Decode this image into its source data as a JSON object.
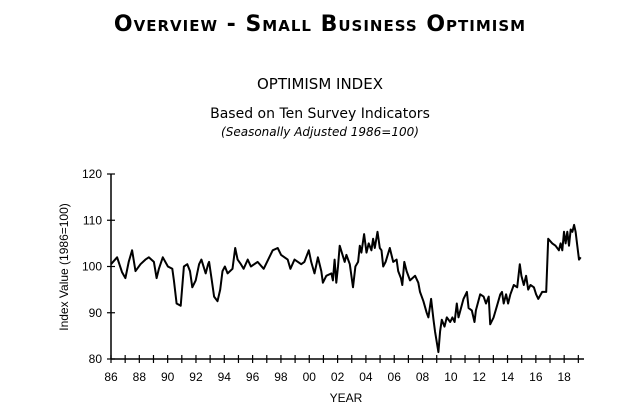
{
  "header": {
    "title": "Overview - Small Business Optimism"
  },
  "chart_data": {
    "type": "line",
    "title": "OPTIMISM INDEX",
    "subtitle": "Based on Ten Survey Indicators",
    "note": "(Seasonally Adjusted 1986=100)",
    "xlabel": "YEAR",
    "ylabel": "Index Value (1986=100)",
    "xlim": [
      1986,
      2019.4
    ],
    "ylim": [
      80,
      120
    ],
    "yticks": [
      80,
      90,
      100,
      110,
      120
    ],
    "xtick_labels": [
      "86",
      "88",
      "90",
      "92",
      "94",
      "96",
      "98",
      "00",
      "02",
      "04",
      "06",
      "08",
      "10",
      "12",
      "14",
      "16",
      "18"
    ],
    "grid": false,
    "line_color": "#000000",
    "series": [
      {
        "points": [
          [
            1986.0,
            100.5
          ],
          [
            1986.43,
            102
          ],
          [
            1986.78,
            98.8
          ],
          [
            1987.02,
            97.5
          ],
          [
            1987.25,
            101
          ],
          [
            1987.49,
            103.5
          ],
          [
            1987.73,
            99
          ],
          [
            1988.08,
            100.5
          ],
          [
            1988.43,
            101.5
          ],
          [
            1988.67,
            102
          ],
          [
            1989.03,
            101
          ],
          [
            1989.22,
            97.5
          ],
          [
            1989.38,
            99.5
          ],
          [
            1989.66,
            102
          ],
          [
            1990.02,
            100
          ],
          [
            1990.33,
            99.5
          ],
          [
            1990.44,
            97
          ],
          [
            1990.63,
            92
          ],
          [
            1990.92,
            91.5
          ],
          [
            1991.15,
            100
          ],
          [
            1991.39,
            100.5
          ],
          [
            1991.58,
            99
          ],
          [
            1991.74,
            95.5
          ],
          [
            1991.98,
            97
          ],
          [
            1992.22,
            100.5
          ],
          [
            1992.38,
            101.5
          ],
          [
            1992.69,
            98.5
          ],
          [
            1992.86,
            100.5
          ],
          [
            1992.93,
            101
          ],
          [
            1993.12,
            97
          ],
          [
            1993.28,
            93.5
          ],
          [
            1993.52,
            92.5
          ],
          [
            1993.71,
            95
          ],
          [
            1993.87,
            99
          ],
          [
            1994.04,
            100
          ],
          [
            1994.23,
            98.5
          ],
          [
            1994.58,
            99.5
          ],
          [
            1994.77,
            104
          ],
          [
            1994.94,
            101.5
          ],
          [
            1995.17,
            100.5
          ],
          [
            1995.36,
            99.5
          ],
          [
            1995.65,
            101.5
          ],
          [
            1995.88,
            100
          ],
          [
            1996.35,
            101
          ],
          [
            1996.78,
            99.5
          ],
          [
            1997.42,
            103.5
          ],
          [
            1997.77,
            104
          ],
          [
            1998.01,
            102.5
          ],
          [
            1998.48,
            101.5
          ],
          [
            1998.67,
            99.5
          ],
          [
            1998.96,
            101.5
          ],
          [
            1999.43,
            100.5
          ],
          [
            1999.66,
            101
          ],
          [
            1999.97,
            103.5
          ],
          [
            2000.14,
            101
          ],
          [
            2000.37,
            98.5
          ],
          [
            2000.61,
            102
          ],
          [
            2000.85,
            99
          ],
          [
            2000.96,
            96.5
          ],
          [
            2001.2,
            98
          ],
          [
            2001.56,
            98.5
          ],
          [
            2001.67,
            97
          ],
          [
            2001.79,
            101.5
          ],
          [
            2001.91,
            96.5
          ],
          [
            2002.03,
            100
          ],
          [
            2002.15,
            104.5
          ],
          [
            2002.5,
            101
          ],
          [
            2002.62,
            102.5
          ],
          [
            2002.86,
            100.5
          ],
          [
            2003.09,
            95.5
          ],
          [
            2003.26,
            100
          ],
          [
            2003.45,
            101
          ],
          [
            2003.57,
            104.5
          ],
          [
            2003.68,
            103
          ],
          [
            2003.87,
            107
          ],
          [
            2004.04,
            103
          ],
          [
            2004.2,
            105
          ],
          [
            2004.39,
            103.5
          ],
          [
            2004.51,
            106
          ],
          [
            2004.63,
            104
          ],
          [
            2004.82,
            107.5
          ],
          [
            2004.98,
            104
          ],
          [
            2005.1,
            103.5
          ],
          [
            2005.22,
            100
          ],
          [
            2005.39,
            101
          ],
          [
            2005.69,
            104
          ],
          [
            2005.93,
            101
          ],
          [
            2006.17,
            101.5
          ],
          [
            2006.28,
            99
          ],
          [
            2006.47,
            97.5
          ],
          [
            2006.57,
            96
          ],
          [
            2006.71,
            101
          ],
          [
            2006.87,
            99
          ],
          [
            2007.11,
            97
          ],
          [
            2007.47,
            98
          ],
          [
            2007.7,
            96.5
          ],
          [
            2007.82,
            94.5
          ],
          [
            2008.06,
            92.5
          ],
          [
            2008.29,
            90
          ],
          [
            2008.41,
            89
          ],
          [
            2008.6,
            93
          ],
          [
            2008.77,
            88.5
          ],
          [
            2008.88,
            86
          ],
          [
            2009.12,
            81.5
          ],
          [
            2009.24,
            86
          ],
          [
            2009.36,
            88.5
          ],
          [
            2009.55,
            87
          ],
          [
            2009.71,
            89
          ],
          [
            2009.95,
            88
          ],
          [
            2010.11,
            89
          ],
          [
            2010.26,
            88
          ],
          [
            2010.42,
            92
          ],
          [
            2010.54,
            89
          ],
          [
            2010.89,
            93
          ],
          [
            2011.13,
            94.5
          ],
          [
            2011.25,
            91
          ],
          [
            2011.48,
            90.5
          ],
          [
            2011.67,
            88
          ],
          [
            2011.77,
            90.5
          ],
          [
            2012.07,
            94
          ],
          [
            2012.31,
            93.5
          ],
          [
            2012.48,
            92
          ],
          [
            2012.67,
            93.5
          ],
          [
            2012.78,
            87.5
          ],
          [
            2013.02,
            89
          ],
          [
            2013.26,
            91.5
          ],
          [
            2013.49,
            94
          ],
          [
            2013.61,
            94.5
          ],
          [
            2013.73,
            92
          ],
          [
            2013.9,
            94
          ],
          [
            2014.04,
            92
          ],
          [
            2014.2,
            94
          ],
          [
            2014.44,
            96
          ],
          [
            2014.68,
            95.5
          ],
          [
            2014.87,
            100.5
          ],
          [
            2014.98,
            98
          ],
          [
            2015.15,
            96
          ],
          [
            2015.31,
            98
          ],
          [
            2015.46,
            95
          ],
          [
            2015.62,
            96
          ],
          [
            2015.86,
            95.5
          ],
          [
            2016.02,
            94
          ],
          [
            2016.17,
            93
          ],
          [
            2016.45,
            94.5
          ],
          [
            2016.73,
            94.5
          ],
          [
            2016.87,
            106
          ],
          [
            2017.16,
            105
          ],
          [
            2017.39,
            104.5
          ],
          [
            2017.63,
            103.5
          ],
          [
            2017.75,
            105
          ],
          [
            2017.87,
            103.5
          ],
          [
            2017.99,
            107.5
          ],
          [
            2018.1,
            105
          ],
          [
            2018.22,
            107.5
          ],
          [
            2018.34,
            104.5
          ],
          [
            2018.46,
            108
          ],
          [
            2018.58,
            107.5
          ],
          [
            2018.7,
            109
          ],
          [
            2018.81,
            107.5
          ],
          [
            2018.93,
            104.5
          ],
          [
            2019.05,
            101.5
          ],
          [
            2019.17,
            102
          ]
        ]
      }
    ]
  }
}
